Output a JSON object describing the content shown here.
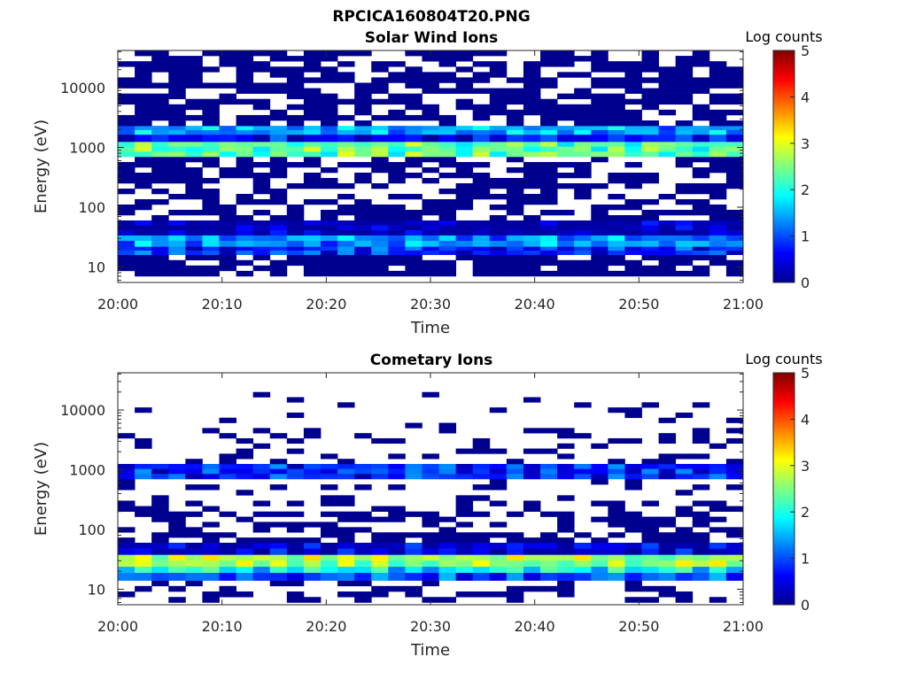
{
  "figure_title": "RPCICA160804T20.PNG",
  "colormap": [
    "#00008f",
    "#0000ff",
    "#0080ff",
    "#00ffff",
    "#80ff80",
    "#ffff00",
    "#ff8000",
    "#ff0000",
    "#800000"
  ],
  "chart_data": [
    {
      "type": "heatmap",
      "title": "Solar Wind Ions",
      "xlabel": "Time",
      "ylabel": "Energy (eV)",
      "x_ticks": [
        "20:00",
        "20:10",
        "20:20",
        "20:30",
        "20:40",
        "20:50",
        "21:00"
      ],
      "y_ticks": [
        "10",
        "100",
        "1000",
        "10000"
      ],
      "y_scale": "log",
      "ylim": [
        5.5,
        42000
      ],
      "x_range": [
        "20:00",
        "21:00"
      ],
      "colorbar": {
        "label": "Log counts",
        "ticks": [
          "0",
          "1",
          "2",
          "3",
          "4",
          "5"
        ],
        "range": [
          0,
          5
        ]
      },
      "bands": [
        {
          "energy_min": 7,
          "energy_max": 16,
          "level": 0.0,
          "coverage": 0.8
        },
        {
          "energy_min": 16,
          "energy_max": 22,
          "level": 0.7,
          "coverage": 1.0
        },
        {
          "energy_min": 22,
          "energy_max": 34,
          "level": 1.3,
          "coverage": 1.0
        },
        {
          "energy_min": 34,
          "energy_max": 60,
          "level": 0.1,
          "coverage": 1.0
        },
        {
          "energy_min": 60,
          "energy_max": 700,
          "level": 0.0,
          "coverage": 0.55
        },
        {
          "energy_min": 700,
          "energy_max": 1250,
          "level": 2.3,
          "coverage": 1.0
        },
        {
          "energy_min": 1250,
          "energy_max": 1650,
          "level": 0.6,
          "coverage": 1.0
        },
        {
          "energy_min": 1650,
          "energy_max": 2300,
          "level": 1.4,
          "coverage": 1.0
        },
        {
          "energy_min": 2300,
          "energy_max": 42000,
          "level": 0.0,
          "coverage": 0.65
        }
      ]
    },
    {
      "type": "heatmap",
      "title": "Cometary Ions",
      "xlabel": "Time",
      "ylabel": "Energy (eV)",
      "x_ticks": [
        "20:00",
        "20:10",
        "20:20",
        "20:30",
        "20:40",
        "20:50",
        "21:00"
      ],
      "y_ticks": [
        "10",
        "100",
        "1000",
        "10000"
      ],
      "y_scale": "log",
      "ylim": [
        5.5,
        42000
      ],
      "x_range": [
        "20:00",
        "21:00"
      ],
      "colorbar": {
        "label": "Log counts",
        "ticks": [
          "0",
          "1",
          "2",
          "3",
          "4",
          "5"
        ],
        "range": [
          0,
          5
        ]
      },
      "bands": [
        {
          "energy_min": 6,
          "energy_max": 14,
          "level": 0.0,
          "coverage": 0.35
        },
        {
          "energy_min": 14,
          "energy_max": 19,
          "level": 1.0,
          "coverage": 1.0
        },
        {
          "energy_min": 19,
          "energy_max": 24,
          "level": 1.8,
          "coverage": 1.0
        },
        {
          "energy_min": 24,
          "energy_max": 38,
          "level": 2.6,
          "coverage": 1.0
        },
        {
          "energy_min": 38,
          "energy_max": 60,
          "level": 0.3,
          "coverage": 1.0
        },
        {
          "energy_min": 60,
          "energy_max": 200,
          "level": 0.0,
          "coverage": 0.55
        },
        {
          "energy_min": 200,
          "energy_max": 700,
          "level": 0.0,
          "coverage": 0.2
        },
        {
          "energy_min": 700,
          "energy_max": 1250,
          "level": 0.7,
          "coverage": 1.0
        },
        {
          "energy_min": 1250,
          "energy_max": 5000,
          "level": 0.0,
          "coverage": 0.22
        },
        {
          "energy_min": 5000,
          "energy_max": 20000,
          "level": 0.0,
          "coverage": 0.08
        }
      ]
    }
  ]
}
